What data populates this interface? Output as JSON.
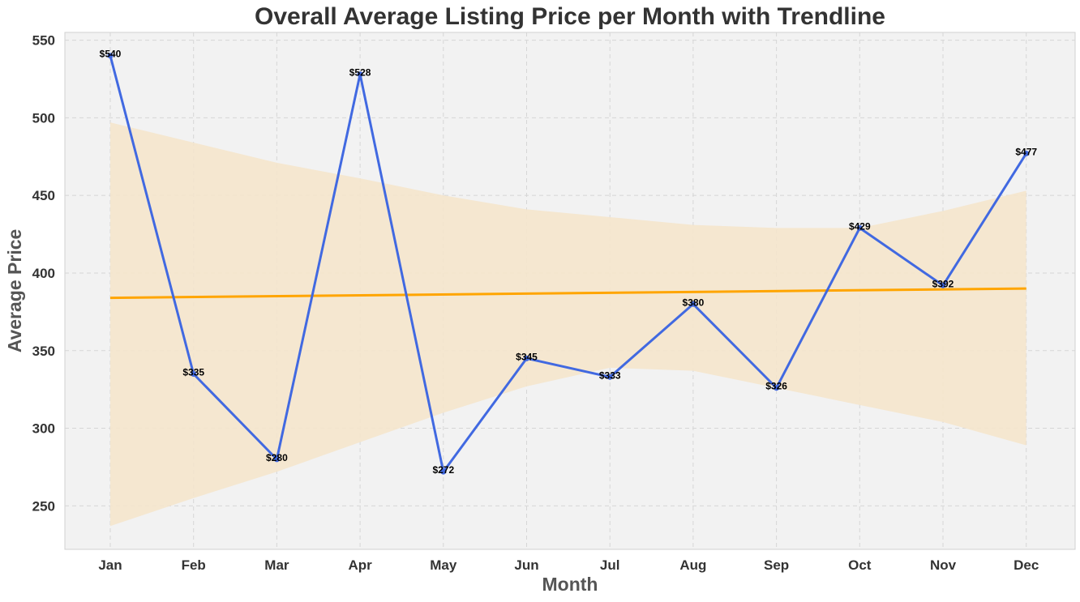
{
  "chart_data": {
    "type": "line",
    "title": "Overall Average Listing Price per Month with Trendline",
    "xlabel": "Month",
    "ylabel": "Average Price",
    "categories": [
      "Jan",
      "Feb",
      "Mar",
      "Apr",
      "May",
      "Jun",
      "Jul",
      "Aug",
      "Sep",
      "Oct",
      "Nov",
      "Dec"
    ],
    "series": [
      {
        "values": [
          540,
          335,
          280,
          528,
          272,
          345,
          333,
          380,
          326,
          429,
          392,
          477
        ],
        "data_labels": [
          "$540",
          "$335",
          "$280",
          "$528",
          "$272",
          "$345",
          "$333",
          "$380",
          "$326",
          "$429",
          "$392",
          "$477"
        ],
        "color": "#4169e1"
      }
    ],
    "trendline": {
      "start": 384,
      "end": 390,
      "color": "#ffa500"
    },
    "confidence_band": {
      "upper": [
        497,
        484,
        471,
        461,
        450,
        441,
        436,
        431,
        429,
        429,
        440,
        453
      ],
      "lower": [
        237,
        255,
        272,
        291,
        310,
        327,
        339,
        337,
        326,
        315,
        304,
        289
      ],
      "color": "#f5e6cc"
    },
    "ylim": [
      222,
      555
    ],
    "yticks": [
      250,
      300,
      350,
      400,
      450,
      500,
      550
    ],
    "ytick_labels": [
      "250",
      "300",
      "350",
      "400",
      "450",
      "500",
      "550"
    ],
    "grid": true,
    "plot_background": "#f2f2f2"
  }
}
